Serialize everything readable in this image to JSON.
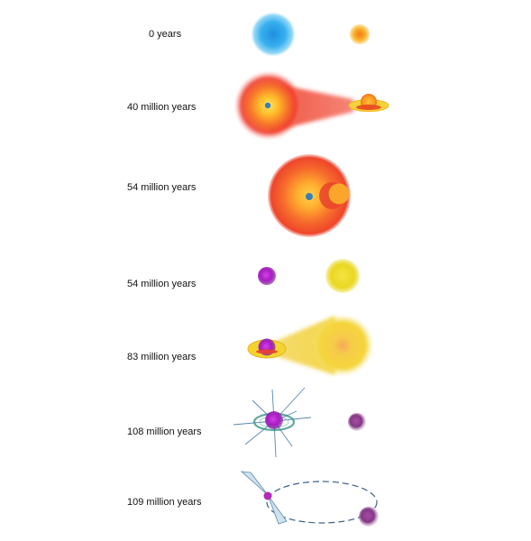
{
  "stages": [
    {
      "label": "0 years"
    },
    {
      "label": "40 million years"
    },
    {
      "label": "54 million years"
    },
    {
      "label": "54 million years"
    },
    {
      "label": "83 million years"
    },
    {
      "label": "108 million years"
    },
    {
      "label": "109 million years"
    }
  ],
  "colors": {
    "blue_star": "#2fa8ea",
    "red_giant": "#f2452a",
    "orange_star": "#f7a21a",
    "yellow_star": "#ecd923",
    "purple_star": "#b21fc4",
    "dim_purple": "#8a3a8f",
    "core": "#3c7fb3",
    "disk": "#e9c829",
    "orbit": "#3c5f88",
    "wind_ray": "#5a86b0"
  }
}
